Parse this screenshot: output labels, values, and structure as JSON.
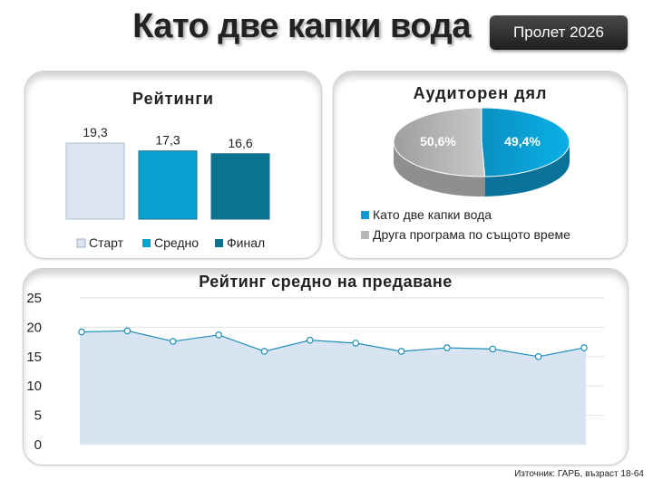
{
  "title": "Като две капки вода",
  "badge": "Пролет 2026",
  "source": "Източник: ГАРБ, възраст 18-64",
  "colors": {
    "start": "#dae5f0",
    "middle": "#0aa0d0",
    "final": "#0b7290",
    "area_fill": "#d9e4f2",
    "line": "#1f8fb8",
    "pie_blue": "#0a9bd0",
    "pie_gray": "#b8b8b8"
  },
  "chart_data": [
    {
      "type": "bar",
      "title": "Рейтинги",
      "categories": [
        "Старт",
        "Средно",
        "Финал"
      ],
      "values": [
        19.3,
        17.3,
        16.6
      ],
      "value_labels": [
        "19,3",
        "17,3",
        "16,6"
      ],
      "legend": [
        "Старт",
        "Средно",
        "Финал"
      ],
      "legend_position": "bottom",
      "ylim": [
        0,
        22
      ]
    },
    {
      "type": "pie",
      "title": "Аудиторен дял",
      "slices": [
        {
          "name": "Като две капки вода",
          "value": 49.4,
          "label": "49,4%"
        },
        {
          "name": "Друга програма по същото време",
          "value": 50.6,
          "label": "50,6%"
        }
      ],
      "legend_position": "bottom"
    },
    {
      "type": "area",
      "title": "Рейтинг средно на предаване",
      "y": [
        19.2,
        19.4,
        17.6,
        18.7,
        15.9,
        17.8,
        17.3,
        15.9,
        16.5,
        16.3,
        15.0,
        16.5
      ],
      "ylim": [
        0,
        25
      ],
      "yticks": [
        0,
        5,
        10,
        15,
        20,
        25
      ],
      "ytick_labels": [
        "0",
        "5",
        "10",
        "15",
        "20",
        "25"
      ],
      "grid": true
    }
  ]
}
